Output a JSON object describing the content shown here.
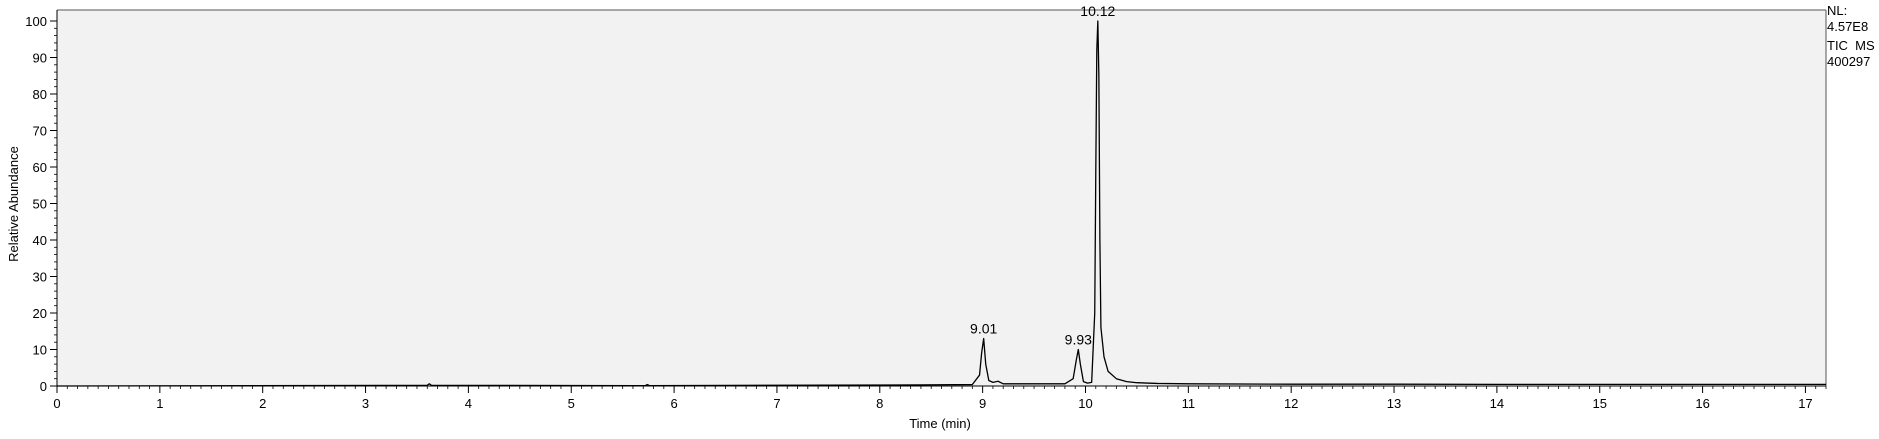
{
  "chart_data": {
    "type": "line",
    "xlabel": "Time (min)",
    "ylabel": "Relative Abundance",
    "xlim": [
      0,
      17.2
    ],
    "ylim": [
      0,
      100
    ],
    "x_ticks": [
      0,
      1,
      2,
      3,
      4,
      5,
      6,
      7,
      8,
      9,
      10,
      11,
      12,
      13,
      14,
      15,
      16,
      17
    ],
    "x_tick_labels": [
      "0",
      "1",
      "2",
      "3",
      "4",
      "5",
      "6",
      "7",
      "8",
      "9",
      "10",
      "11",
      "12",
      "13",
      "14",
      "15",
      "16",
      "17"
    ],
    "y_ticks": [
      0,
      10,
      20,
      30,
      40,
      50,
      60,
      70,
      80,
      90,
      100
    ],
    "y_tick_labels": [
      "0",
      "10",
      "20",
      "30",
      "40",
      "50",
      "60",
      "70",
      "80",
      "90",
      "100"
    ],
    "peaks": [
      {
        "label": "9.01",
        "x": 9.01,
        "y": 13
      },
      {
        "label": "9.93",
        "x": 9.93,
        "y": 10
      },
      {
        "label": "10.12",
        "x": 10.12,
        "y": 100
      }
    ],
    "series": [
      {
        "x": [
          0,
          3.6,
          3.62,
          3.64,
          5.72,
          5.74,
          5.76,
          8.4,
          8.9,
          8.97,
          8.99,
          9.01,
          9.03,
          9.06,
          9.1,
          9.15,
          9.2,
          9.8,
          9.88,
          9.91,
          9.93,
          9.95,
          9.98,
          10.02,
          10.06,
          10.09,
          10.1,
          10.11,
          10.12,
          10.13,
          10.14,
          10.15,
          10.18,
          10.22,
          10.3,
          10.4,
          10.5,
          10.7,
          11,
          12,
          13,
          14,
          15,
          16,
          17,
          17.2
        ],
        "y": [
          0,
          0.2,
          0.6,
          0.2,
          0.1,
          0.4,
          0.1,
          0.3,
          0.4,
          3,
          9,
          13,
          6,
          1.5,
          1,
          1.3,
          0.6,
          0.6,
          2,
          7,
          10,
          6,
          1.2,
          0.8,
          1,
          20,
          58,
          92,
          100,
          85,
          40,
          16,
          8,
          4,
          2,
          1.2,
          0.9,
          0.7,
          0.6,
          0.5,
          0.5,
          0.45,
          0.45,
          0.45,
          0.45,
          0.45
        ]
      }
    ]
  },
  "info": {
    "nl_label": "NL:",
    "nl_value": "4.57E8",
    "trace_type": "TIC  MS",
    "sample_id": "400297"
  }
}
